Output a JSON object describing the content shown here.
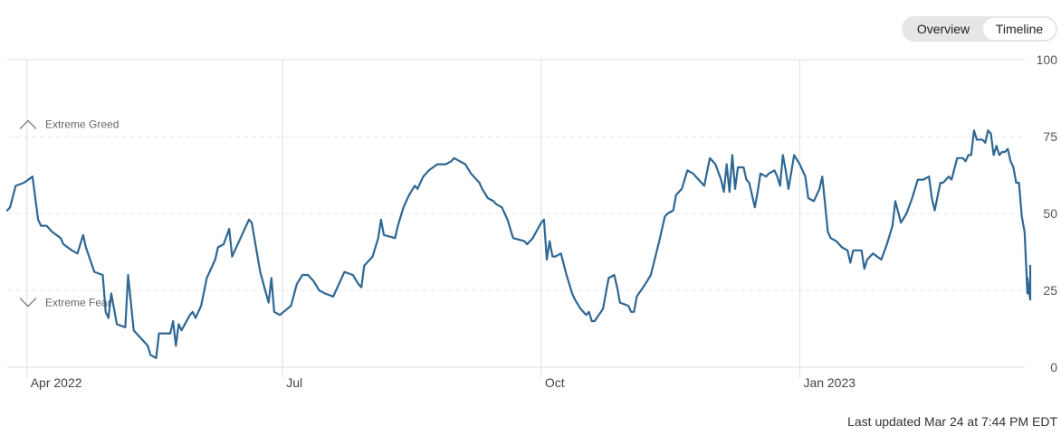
{
  "toggle": {
    "options": [
      "Overview",
      "Timeline"
    ],
    "selected": "Timeline"
  },
  "footer": {
    "last_updated": "Last updated Mar 24 at 7:44 PM EDT"
  },
  "colors": {
    "line": "#2f6793",
    "grid": "#e4e4e4",
    "text": "#555555"
  },
  "chart_data": {
    "type": "line",
    "title": "",
    "xlabel": "",
    "ylabel": "",
    "ylim": [
      0,
      100
    ],
    "yticks": [
      0,
      25,
      50,
      75,
      100
    ],
    "yaxis_position": "right",
    "xlim": [
      "2022-03-25",
      "2023-03-24"
    ],
    "xticks": [
      {
        "date": "2022-04-01",
        "label": "Apr 2022"
      },
      {
        "date": "2022-07-01",
        "label": "Jul"
      },
      {
        "date": "2022-10-01",
        "label": "Oct"
      },
      {
        "date": "2023-01-01",
        "label": "Jan 2023"
      }
    ],
    "annotations": [
      {
        "label": "Extreme Greed",
        "y": 79,
        "icon": "chevron-up"
      },
      {
        "label": "Extreme Fear",
        "y": 21,
        "icon": "chevron-down"
      }
    ],
    "series": [
      {
        "values": [
          [
            "2022-03-25",
            51
          ],
          [
            "2022-03-26",
            52
          ],
          [
            "2022-03-28",
            59
          ],
          [
            "2022-03-31",
            60
          ],
          [
            "2022-04-03",
            62
          ],
          [
            "2022-04-05",
            48
          ],
          [
            "2022-04-06",
            46
          ],
          [
            "2022-04-08",
            46
          ],
          [
            "2022-04-10",
            44
          ],
          [
            "2022-04-13",
            42
          ],
          [
            "2022-04-14",
            40
          ],
          [
            "2022-04-17",
            38
          ],
          [
            "2022-04-19",
            37
          ],
          [
            "2022-04-21",
            43
          ],
          [
            "2022-04-22",
            39
          ],
          [
            "2022-04-25",
            31
          ],
          [
            "2022-04-28",
            30
          ],
          [
            "2022-04-29",
            18
          ],
          [
            "2022-04-30",
            16
          ],
          [
            "2022-05-01",
            24
          ],
          [
            "2022-05-03",
            14
          ],
          [
            "2022-05-06",
            13
          ],
          [
            "2022-05-07",
            30
          ],
          [
            "2022-05-09",
            12
          ],
          [
            "2022-05-12",
            9
          ],
          [
            "2022-05-14",
            7
          ],
          [
            "2022-05-15",
            4
          ],
          [
            "2022-05-17",
            3
          ],
          [
            "2022-05-18",
            11
          ],
          [
            "2022-05-21",
            11
          ],
          [
            "2022-05-22",
            11
          ],
          [
            "2022-05-23",
            15
          ],
          [
            "2022-05-24",
            7
          ],
          [
            "2022-05-25",
            14
          ],
          [
            "2022-05-26",
            12
          ],
          [
            "2022-05-29",
            17
          ],
          [
            "2022-05-30",
            18
          ],
          [
            "2022-05-31",
            16
          ],
          [
            "2022-06-02",
            20
          ],
          [
            "2022-06-04",
            29
          ],
          [
            "2022-06-07",
            35
          ],
          [
            "2022-06-08",
            39
          ],
          [
            "2022-06-10",
            40
          ],
          [
            "2022-06-12",
            45
          ],
          [
            "2022-06-13",
            36
          ],
          [
            "2022-06-16",
            42
          ],
          [
            "2022-06-19",
            48
          ],
          [
            "2022-06-20",
            47
          ],
          [
            "2022-06-23",
            31
          ],
          [
            "2022-06-26",
            21
          ],
          [
            "2022-06-27",
            29
          ],
          [
            "2022-06-28",
            18
          ],
          [
            "2022-06-30",
            17
          ],
          [
            "2022-07-04",
            20
          ],
          [
            "2022-07-06",
            27
          ],
          [
            "2022-07-08",
            30
          ],
          [
            "2022-07-10",
            30
          ],
          [
            "2022-07-12",
            28
          ],
          [
            "2022-07-14",
            25
          ],
          [
            "2022-07-16",
            24
          ],
          [
            "2022-07-19",
            23
          ],
          [
            "2022-07-23",
            31
          ],
          [
            "2022-07-26",
            30
          ],
          [
            "2022-07-28",
            27
          ],
          [
            "2022-07-29",
            26
          ],
          [
            "2022-07-30",
            33
          ],
          [
            "2022-08-02",
            36
          ],
          [
            "2022-08-04",
            42
          ],
          [
            "2022-08-05",
            48
          ],
          [
            "2022-08-06",
            43
          ],
          [
            "2022-08-10",
            42
          ],
          [
            "2022-08-11",
            46
          ],
          [
            "2022-08-13",
            52
          ],
          [
            "2022-08-15",
            56
          ],
          [
            "2022-08-17",
            59
          ],
          [
            "2022-08-18",
            58
          ],
          [
            "2022-08-20",
            62
          ],
          [
            "2022-08-22",
            64
          ],
          [
            "2022-08-25",
            66
          ],
          [
            "2022-08-28",
            66
          ],
          [
            "2022-08-30",
            67
          ],
          [
            "2022-08-31",
            68
          ],
          [
            "2022-09-02",
            67
          ],
          [
            "2022-09-04",
            66
          ],
          [
            "2022-09-06",
            63
          ],
          [
            "2022-09-09",
            60
          ],
          [
            "2022-09-10",
            58
          ],
          [
            "2022-09-12",
            55
          ],
          [
            "2022-09-14",
            54
          ],
          [
            "2022-09-15",
            53
          ],
          [
            "2022-09-17",
            52
          ],
          [
            "2022-09-18",
            50
          ],
          [
            "2022-09-19",
            48
          ],
          [
            "2022-09-21",
            42
          ],
          [
            "2022-09-25",
            41
          ],
          [
            "2022-09-26",
            40
          ],
          [
            "2022-09-28",
            42
          ],
          [
            "2022-10-01",
            47
          ],
          [
            "2022-10-02",
            48
          ],
          [
            "2022-10-03",
            35
          ],
          [
            "2022-10-04",
            41
          ],
          [
            "2022-10-05",
            36
          ],
          [
            "2022-10-06",
            36
          ],
          [
            "2022-10-08",
            37
          ],
          [
            "2022-10-10",
            30
          ],
          [
            "2022-10-11",
            27
          ],
          [
            "2022-10-12",
            24
          ],
          [
            "2022-10-13",
            22
          ],
          [
            "2022-10-15",
            19
          ],
          [
            "2022-10-17",
            17
          ],
          [
            "2022-10-18",
            18
          ],
          [
            "2022-10-19",
            15
          ],
          [
            "2022-10-20",
            15
          ],
          [
            "2022-10-23",
            19
          ],
          [
            "2022-10-25",
            29
          ],
          [
            "2022-10-27",
            30
          ],
          [
            "2022-10-28",
            26
          ],
          [
            "2022-10-29",
            21
          ],
          [
            "2022-11-01",
            20
          ],
          [
            "2022-11-02",
            18
          ],
          [
            "2022-11-03",
            18
          ],
          [
            "2022-11-04",
            23
          ],
          [
            "2022-11-07",
            27
          ],
          [
            "2022-11-09",
            30
          ],
          [
            "2022-11-12",
            41
          ],
          [
            "2022-11-14",
            49
          ],
          [
            "2022-11-15",
            50
          ],
          [
            "2022-11-17",
            51
          ],
          [
            "2022-11-18",
            56
          ],
          [
            "2022-11-20",
            58
          ],
          [
            "2022-11-22",
            64
          ],
          [
            "2022-11-24",
            63
          ],
          [
            "2022-11-25",
            62
          ],
          [
            "2022-11-28",
            59
          ],
          [
            "2022-11-30",
            68
          ],
          [
            "2022-12-02",
            66
          ],
          [
            "2022-12-04",
            61
          ],
          [
            "2022-12-05",
            57
          ],
          [
            "2022-12-06",
            66
          ],
          [
            "2022-12-07",
            57
          ],
          [
            "2022-12-08",
            69
          ],
          [
            "2022-12-09",
            58
          ],
          [
            "2022-12-10",
            65
          ],
          [
            "2022-12-12",
            65
          ],
          [
            "2022-12-13",
            61
          ],
          [
            "2022-12-14",
            60
          ],
          [
            "2022-12-16",
            52
          ],
          [
            "2022-12-17",
            57
          ],
          [
            "2022-12-18",
            63
          ],
          [
            "2022-12-20",
            62
          ],
          [
            "2022-12-21",
            63
          ],
          [
            "2022-12-23",
            64
          ],
          [
            "2022-12-24",
            62
          ],
          [
            "2022-12-25",
            59
          ],
          [
            "2022-12-26",
            69
          ],
          [
            "2022-12-27",
            64
          ],
          [
            "2022-12-28",
            58
          ],
          [
            "2022-12-30",
            69
          ],
          [
            "2023-01-01",
            66
          ],
          [
            "2023-01-03",
            62
          ],
          [
            "2023-01-04",
            55
          ],
          [
            "2023-01-06",
            54
          ],
          [
            "2023-01-08",
            58
          ],
          [
            "2023-01-09",
            62
          ],
          [
            "2023-01-11",
            44
          ],
          [
            "2023-01-12",
            42
          ],
          [
            "2023-01-14",
            41
          ],
          [
            "2023-01-16",
            39
          ],
          [
            "2023-01-18",
            38
          ],
          [
            "2023-01-19",
            34
          ],
          [
            "2023-01-20",
            38
          ],
          [
            "2023-01-23",
            38
          ],
          [
            "2023-01-24",
            32
          ],
          [
            "2023-01-25",
            35
          ],
          [
            "2023-01-27",
            37
          ],
          [
            "2023-01-30",
            35
          ],
          [
            "2023-02-01",
            40
          ],
          [
            "2023-02-03",
            46
          ],
          [
            "2023-02-04",
            54
          ],
          [
            "2023-02-06",
            47
          ],
          [
            "2023-02-08",
            50
          ],
          [
            "2023-02-10",
            55
          ],
          [
            "2023-02-12",
            61
          ],
          [
            "2023-02-14",
            61
          ],
          [
            "2023-02-16",
            62
          ],
          [
            "2023-02-17",
            55
          ],
          [
            "2023-02-18",
            51
          ],
          [
            "2023-02-20",
            60
          ],
          [
            "2023-02-21",
            60
          ],
          [
            "2023-02-23",
            62
          ],
          [
            "2023-02-24",
            61
          ],
          [
            "2023-02-26",
            68
          ],
          [
            "2023-02-28",
            68
          ],
          [
            "2023-03-01",
            67
          ],
          [
            "2023-03-02",
            69
          ],
          [
            "2023-03-03",
            69
          ],
          [
            "2023-03-04",
            77
          ],
          [
            "2023-03-05",
            74
          ],
          [
            "2023-03-07",
            74
          ],
          [
            "2023-03-08",
            73
          ],
          [
            "2023-03-09",
            77
          ],
          [
            "2023-03-10",
            76
          ],
          [
            "2023-03-11",
            69
          ],
          [
            "2023-03-12",
            72
          ],
          [
            "2023-03-13",
            69
          ],
          [
            "2023-03-14",
            70
          ],
          [
            "2023-03-15",
            70
          ],
          [
            "2023-03-16",
            71
          ],
          [
            "2023-03-17",
            67
          ],
          [
            "2023-03-18",
            65
          ],
          [
            "2023-03-19",
            60
          ],
          [
            "2023-03-20",
            60
          ],
          [
            "2023-03-21",
            49
          ],
          [
            "2023-03-22",
            44
          ],
          [
            "2023-03-23",
            24
          ],
          [
            "2023-03-23",
            29
          ],
          [
            "2023-03-24",
            22
          ],
          [
            "2023-03-24",
            33
          ]
        ]
      }
    ]
  }
}
